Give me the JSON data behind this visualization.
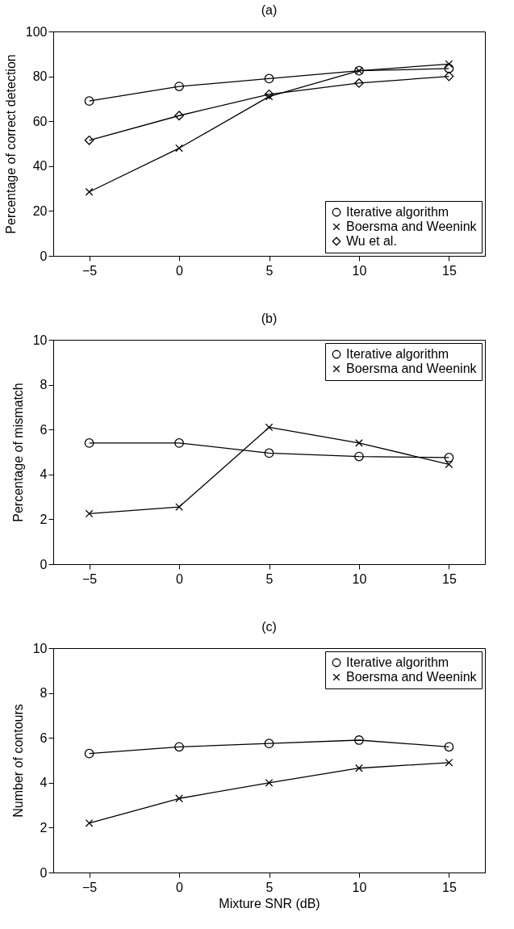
{
  "chart_data": [
    {
      "type": "line",
      "title": "(a)",
      "ylabel": "Percentage of correct detection",
      "x": [
        -5,
        0,
        5,
        10,
        15
      ],
      "xlim": [
        -7,
        17
      ],
      "xticks": [
        -5,
        0,
        5,
        10,
        15
      ],
      "ylim": [
        0,
        100
      ],
      "yticks": [
        0,
        20,
        40,
        60,
        80,
        100
      ],
      "legend": "bottom right",
      "grid": false,
      "line_style": "solid",
      "series": [
        {
          "name": "Iterative algorithm",
          "color": "#000000",
          "marker": "circle",
          "values": [
            69,
            75.5,
            79,
            82.5,
            83.5
          ]
        },
        {
          "name": "Boersma and Weenink",
          "color": "#000000",
          "marker": "cross",
          "values": [
            28.5,
            48,
            71,
            82.5,
            85.5
          ]
        },
        {
          "name": "Wu et al.",
          "color": "#000000",
          "marker": "diamond",
          "values": [
            51.5,
            62.5,
            72,
            77,
            80
          ]
        }
      ]
    },
    {
      "type": "line",
      "title": "(b)",
      "ylabel": "Percentage of mismatch",
      "x": [
        -5,
        0,
        5,
        10,
        15
      ],
      "xlim": [
        -7,
        17
      ],
      "xticks": [
        -5,
        0,
        5,
        10,
        15
      ],
      "ylim": [
        0,
        10
      ],
      "yticks": [
        0,
        2,
        4,
        6,
        8,
        10
      ],
      "legend": "top right",
      "grid": false,
      "line_style": "solid",
      "series": [
        {
          "name": "Iterative algorithm",
          "color": "#000000",
          "marker": "circle",
          "values": [
            5.4,
            5.4,
            4.95,
            4.8,
            4.75
          ]
        },
        {
          "name": "Boersma and Weenink",
          "color": "#000000",
          "marker": "cross",
          "values": [
            2.25,
            2.55,
            6.1,
            5.4,
            4.45
          ]
        }
      ]
    },
    {
      "type": "line",
      "title": "(c)",
      "xlabel": "Mixture SNR (dB)",
      "ylabel": "Number of contours",
      "x": [
        -5,
        0,
        5,
        10,
        15
      ],
      "xlim": [
        -7,
        17
      ],
      "xticks": [
        -5,
        0,
        5,
        10,
        15
      ],
      "ylim": [
        0,
        10
      ],
      "yticks": [
        0,
        2,
        4,
        6,
        8,
        10
      ],
      "legend": "top right",
      "grid": false,
      "line_style": "solid",
      "series": [
        {
          "name": "Iterative algorithm",
          "color": "#000000",
          "marker": "circle",
          "values": [
            5.3,
            5.6,
            5.75,
            5.9,
            5.6
          ]
        },
        {
          "name": "Boersma and Weenink",
          "color": "#000000",
          "marker": "cross",
          "values": [
            2.2,
            3.3,
            4.0,
            4.65,
            4.9
          ]
        }
      ]
    }
  ]
}
